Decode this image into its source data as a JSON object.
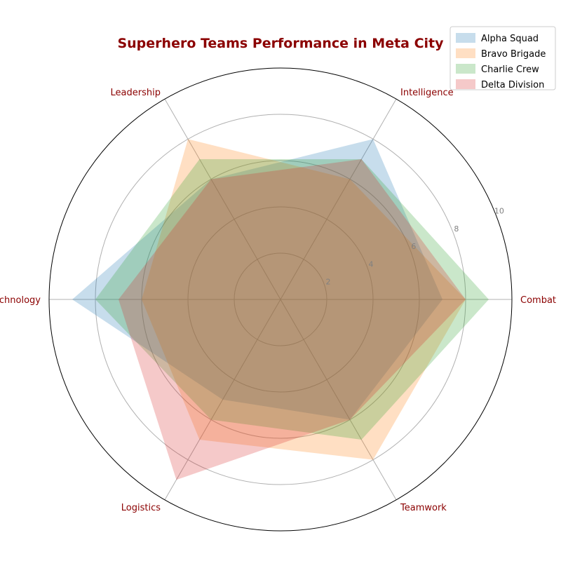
{
  "chart_data": {
    "type": "radar",
    "title": "Superhero Teams Performance in Meta City",
    "categories": [
      "Combat",
      "Intelligence",
      "Leadership",
      "Technology",
      "Logistics",
      "Teamwork"
    ],
    "rlim": [
      0,
      10
    ],
    "r_ticks": [
      2,
      4,
      6,
      8,
      10
    ],
    "grid": true,
    "legend_position": "top-right",
    "series": [
      {
        "name": "Alpha Squad",
        "values": [
          7,
          8,
          6,
          9,
          5,
          6
        ],
        "color": "#1f77b4"
      },
      {
        "name": "Bravo Brigade",
        "values": [
          8,
          6,
          8,
          6,
          7,
          8
        ],
        "color": "#ff7f0e"
      },
      {
        "name": "Charlie Crew",
        "values": [
          9,
          7,
          7,
          8,
          6,
          7
        ],
        "color": "#2ca02c"
      },
      {
        "name": "Delta Division",
        "values": [
          8,
          7,
          6,
          7,
          9,
          6
        ],
        "color": "#d62728"
      }
    ],
    "text_color": "#8b0000",
    "fill_opacity": 0.25
  }
}
